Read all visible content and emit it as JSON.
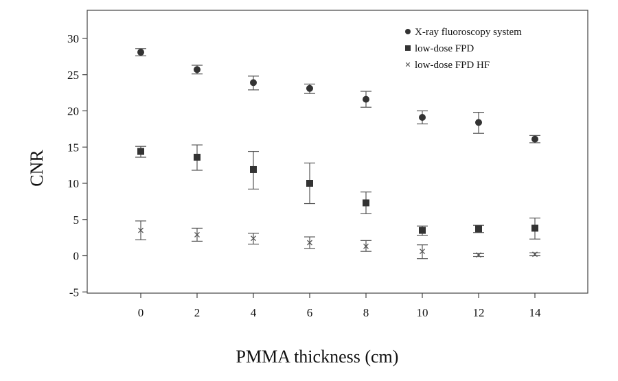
{
  "chart_data": {
    "type": "scatter",
    "title": "",
    "xlabel": "PMMA thickness (cm)",
    "ylabel": "CNR",
    "xlim": [
      -2,
      16
    ],
    "ylim": [
      -5,
      33
    ],
    "x_ticks": [
      "0",
      "2",
      "4",
      "6",
      "8",
      "10",
      "12",
      "14"
    ],
    "x_tick_values": [
      0,
      2,
      4,
      6,
      8,
      10,
      12,
      14
    ],
    "y_ticks": [
      "-5",
      "0",
      "5",
      "10",
      "15",
      "20",
      "25",
      "30"
    ],
    "y_tick_values": [
      -5,
      0,
      5,
      10,
      15,
      20,
      25,
      30
    ],
    "grid": false,
    "legend_position": "top-right",
    "series": [
      {
        "name": "X-ray fluoroscopy system",
        "marker": "circle",
        "color": "#333333",
        "points": [
          {
            "x": 0,
            "y": 28.1,
            "err_low": 27.6,
            "err_high": 28.6
          },
          {
            "x": 2,
            "y": 25.7,
            "err_low": 25.1,
            "err_high": 26.3
          },
          {
            "x": 4,
            "y": 23.9,
            "err_low": 22.9,
            "err_high": 24.8
          },
          {
            "x": 6,
            "y": 23.1,
            "err_low": 22.4,
            "err_high": 23.7
          },
          {
            "x": 8,
            "y": 21.6,
            "err_low": 20.5,
            "err_high": 22.7
          },
          {
            "x": 10,
            "y": 19.1,
            "err_low": 18.2,
            "err_high": 20.0
          },
          {
            "x": 12,
            "y": 18.4,
            "err_low": 16.9,
            "err_high": 19.8
          },
          {
            "x": 14,
            "y": 16.1,
            "err_low": 15.6,
            "err_high": 16.6
          }
        ]
      },
      {
        "name": "low-dose FPD",
        "marker": "square",
        "color": "#333333",
        "points": [
          {
            "x": 0,
            "y": 14.4,
            "err_low": 13.6,
            "err_high": 15.1
          },
          {
            "x": 2,
            "y": 13.6,
            "err_low": 11.8,
            "err_high": 15.3
          },
          {
            "x": 4,
            "y": 11.9,
            "err_low": 9.2,
            "err_high": 14.4
          },
          {
            "x": 6,
            "y": 10.0,
            "err_low": 7.2,
            "err_high": 12.8
          },
          {
            "x": 8,
            "y": 7.3,
            "err_low": 5.8,
            "err_high": 8.8
          },
          {
            "x": 10,
            "y": 3.5,
            "err_low": 2.8,
            "err_high": 4.1
          },
          {
            "x": 12,
            "y": 3.7,
            "err_low": 3.2,
            "err_high": 4.2
          },
          {
            "x": 14,
            "y": 3.8,
            "err_low": 2.3,
            "err_high": 5.2
          }
        ]
      },
      {
        "name": "low-dose FPD HF",
        "marker": "x",
        "color": "#555555",
        "points": [
          {
            "x": 0,
            "y": 3.5,
            "err_low": 2.2,
            "err_high": 4.8
          },
          {
            "x": 2,
            "y": 2.9,
            "err_low": 2.0,
            "err_high": 3.8
          },
          {
            "x": 4,
            "y": 2.4,
            "err_low": 1.6,
            "err_high": 3.1
          },
          {
            "x": 6,
            "y": 1.8,
            "err_low": 1.0,
            "err_high": 2.6
          },
          {
            "x": 8,
            "y": 1.3,
            "err_low": 0.6,
            "err_high": 2.1
          },
          {
            "x": 10,
            "y": 0.6,
            "err_low": -0.4,
            "err_high": 1.5
          },
          {
            "x": 12,
            "y": 0.1,
            "err_low": -0.1,
            "err_high": 0.3
          },
          {
            "x": 14,
            "y": 0.2,
            "err_low": 0.0,
            "err_high": 0.4
          }
        ]
      }
    ]
  }
}
